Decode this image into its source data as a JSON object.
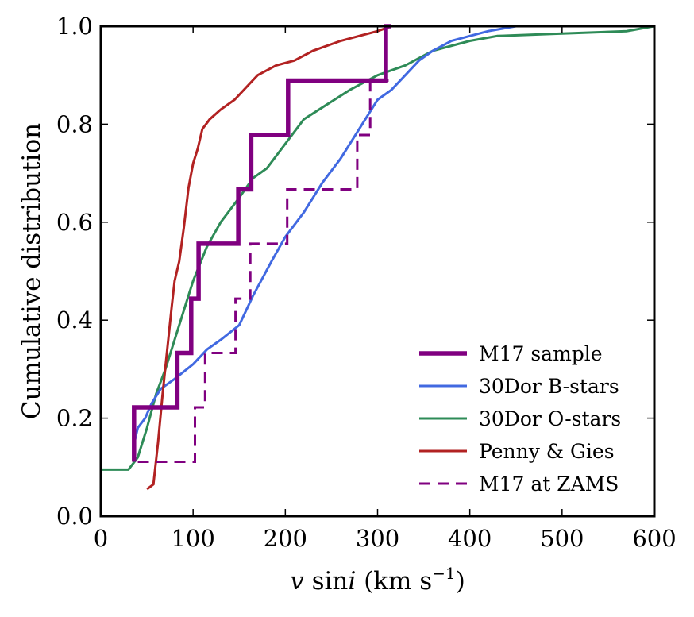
{
  "chart_data": {
    "type": "line",
    "title": "",
    "xlabel": "v sini (km s^-1)",
    "xlabel_parts": {
      "var1": "v",
      "func": " sin",
      "var2": "i",
      "units": " (km s",
      "exp": "−1",
      "close": ")"
    },
    "ylabel": "Cumulative distribution",
    "xlim": [
      0,
      600
    ],
    "ylim": [
      0.0,
      1.0
    ],
    "x_ticks": [
      0,
      100,
      200,
      300,
      400,
      500,
      600
    ],
    "x_tick_labels": [
      "0",
      "100",
      "200",
      "300",
      "400",
      "500",
      "600"
    ],
    "y_ticks": [
      0.0,
      0.2,
      0.4,
      0.6,
      0.8,
      1.0
    ],
    "y_tick_labels": [
      "0.0",
      "0.2",
      "0.4",
      "0.6",
      "0.8",
      "1.0"
    ],
    "grid": false,
    "legend_position": "lower-right",
    "series": [
      {
        "name": "M17 sample",
        "color": "#800080",
        "style": "step",
        "linewidth": "thick",
        "x": [
          36,
          36,
          83,
          83,
          98,
          98,
          106,
          106,
          149,
          149,
          163,
          163,
          203,
          203,
          309,
          309,
          315
        ],
        "y": [
          0.111,
          0.222,
          0.222,
          0.333,
          0.333,
          0.444,
          0.444,
          0.556,
          0.556,
          0.667,
          0.667,
          0.778,
          0.778,
          0.889,
          0.889,
          1.0,
          1.0
        ]
      },
      {
        "name": "30Dor B-stars",
        "color": "#4169e1",
        "style": "line",
        "linewidth": "medium",
        "x": [
          35,
          40,
          48,
          55,
          65,
          80,
          100,
          115,
          130,
          150,
          165,
          185,
          200,
          220,
          240,
          260,
          280,
          300,
          315,
          330,
          345,
          360,
          380,
          400,
          420,
          435,
          450
        ],
        "y": [
          0.14,
          0.18,
          0.2,
          0.23,
          0.26,
          0.28,
          0.31,
          0.34,
          0.36,
          0.39,
          0.45,
          0.52,
          0.57,
          0.62,
          0.68,
          0.73,
          0.79,
          0.85,
          0.87,
          0.9,
          0.93,
          0.95,
          0.97,
          0.98,
          0.99,
          0.995,
          1.0
        ]
      },
      {
        "name": "30Dor O-stars",
        "color": "#2e8b57",
        "style": "line",
        "linewidth": "medium",
        "x": [
          0,
          30,
          40,
          50,
          60,
          70,
          85,
          100,
          115,
          130,
          150,
          165,
          180,
          200,
          220,
          245,
          270,
          300,
          330,
          360,
          400,
          430,
          500,
          570,
          600
        ],
        "y": [
          0.095,
          0.095,
          0.12,
          0.18,
          0.25,
          0.3,
          0.39,
          0.48,
          0.55,
          0.6,
          0.65,
          0.69,
          0.71,
          0.76,
          0.81,
          0.84,
          0.87,
          0.9,
          0.92,
          0.95,
          0.97,
          0.98,
          0.985,
          0.99,
          1.0
        ]
      },
      {
        "name": "Penny & Gies",
        "color": "#b22222",
        "style": "line",
        "linewidth": "medium",
        "x": [
          50,
          57,
          62,
          67,
          72,
          77,
          80,
          85,
          90,
          95,
          100,
          105,
          110,
          118,
          130,
          145,
          160,
          170,
          190,
          210,
          230,
          260,
          280,
          300,
          315
        ],
        "y": [
          0.055,
          0.065,
          0.15,
          0.25,
          0.34,
          0.43,
          0.48,
          0.52,
          0.59,
          0.67,
          0.72,
          0.75,
          0.79,
          0.81,
          0.83,
          0.85,
          0.88,
          0.9,
          0.92,
          0.93,
          0.95,
          0.97,
          0.98,
          0.99,
          1.0
        ]
      },
      {
        "name": "M17 at ZAMS",
        "color": "#800080",
        "style": "dashed-step",
        "linewidth": "medium",
        "x": [
          40,
          40,
          102,
          102,
          113,
          113,
          146,
          146,
          162,
          162,
          202,
          202,
          205,
          205,
          278,
          278,
          292,
          292,
          312
        ],
        "y": [
          0.111,
          0.111,
          0.111,
          0.222,
          0.222,
          0.333,
          0.333,
          0.444,
          0.444,
          0.556,
          0.556,
          0.667,
          0.667,
          0.667,
          0.667,
          0.778,
          0.778,
          0.889,
          0.889
        ]
      }
    ]
  }
}
